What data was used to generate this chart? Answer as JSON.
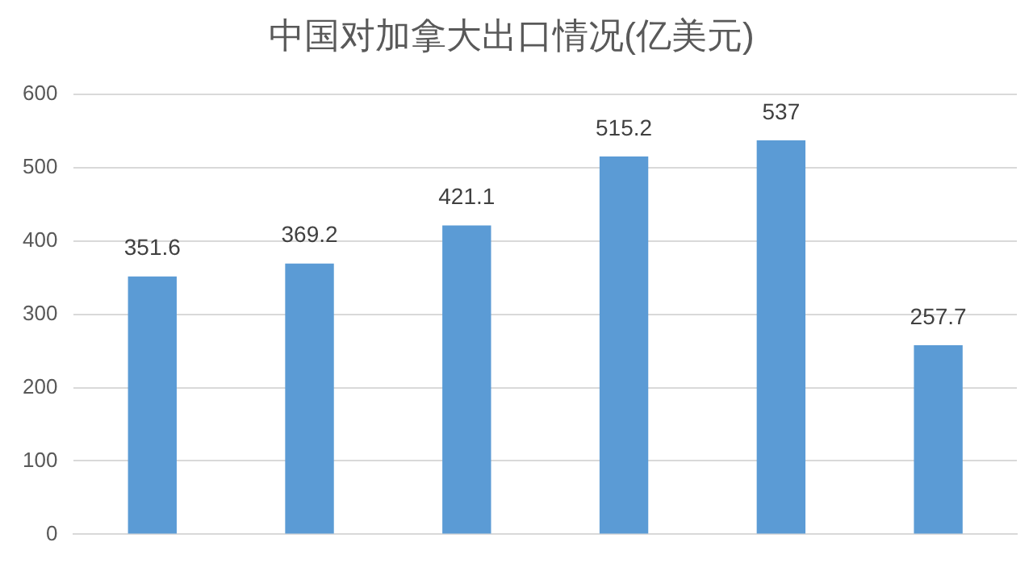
{
  "chart_data": {
    "type": "bar",
    "title": "中国对加拿大出口情况(亿美元)",
    "categories": [
      null,
      null,
      null,
      null,
      null,
      null
    ],
    "values": [
      351.6,
      369.2,
      421.1,
      515.2,
      537,
      257.7
    ],
    "color": "#5b9bd5",
    "ylim": [
      0,
      600
    ],
    "yticks": [
      0,
      100,
      200,
      300,
      400,
      500,
      600
    ],
    "grid": "y",
    "data_labels": true,
    "legend": false,
    "tick_labels": "y"
  }
}
